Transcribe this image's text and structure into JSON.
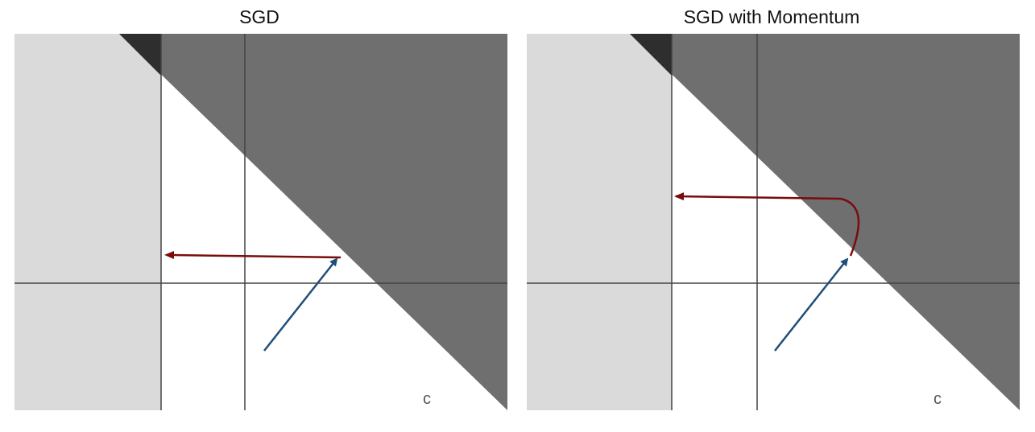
{
  "panels": [
    {
      "title": "SGD",
      "corner_label": "c",
      "trajectory": "straight horizontal step along the boundary"
    },
    {
      "title": "SGD with Momentum",
      "corner_label": "c",
      "trajectory": "curved overshoot before horizontal step"
    }
  ],
  "colors": {
    "light_region": "#dadada",
    "white_region": "#ffffff",
    "dark_region": "#6f6f6f",
    "darkest_corner": "#2e2e2e",
    "grid_line": "#444444",
    "gradient_arrow": "#1f4e79",
    "update_arrow": "#7a0c0c"
  }
}
